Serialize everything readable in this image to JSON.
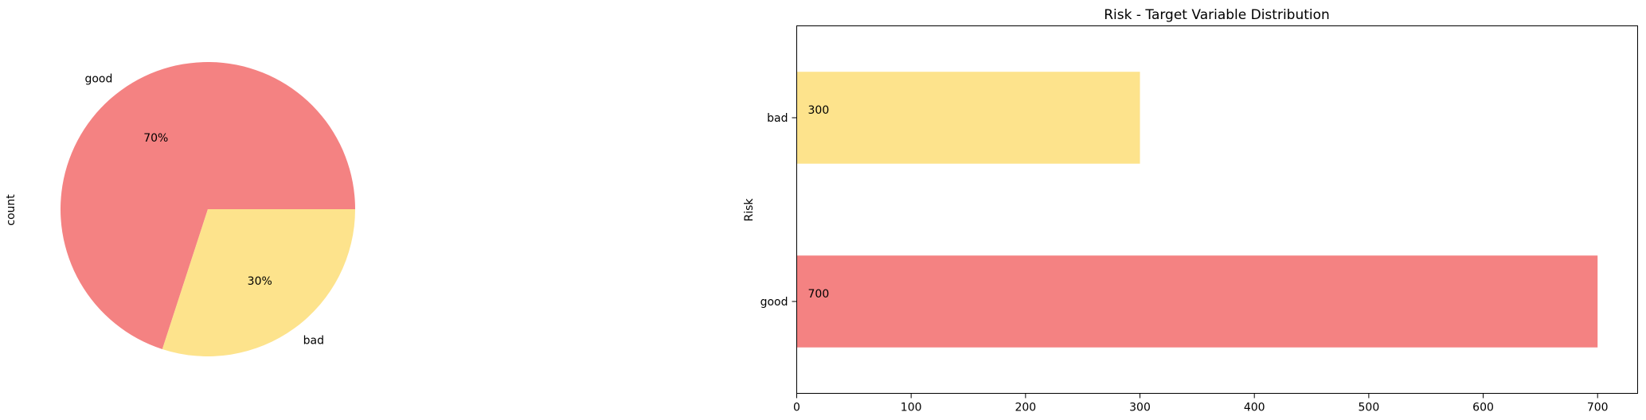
{
  "chart_data": [
    {
      "type": "pie",
      "ylabel": "count",
      "labels": [
        "good",
        "bad"
      ],
      "values": [
        700,
        300
      ],
      "percent_labels": [
        "70%",
        "30%"
      ],
      "colors": [
        "#f48282",
        "#fde38c"
      ]
    },
    {
      "type": "bar",
      "orientation": "horizontal",
      "title": "Risk - Target Variable Distribution",
      "ylabel": "Risk",
      "categories": [
        "good",
        "bad"
      ],
      "values": [
        700,
        300
      ],
      "value_labels": [
        "700",
        "300"
      ],
      "colors": [
        "#f48282",
        "#fde38c"
      ],
      "xlim": [
        0,
        735
      ],
      "xticks": [
        "0",
        "100",
        "200",
        "300",
        "400",
        "500",
        "600",
        "700"
      ],
      "grid": false,
      "legend": false
    }
  ]
}
